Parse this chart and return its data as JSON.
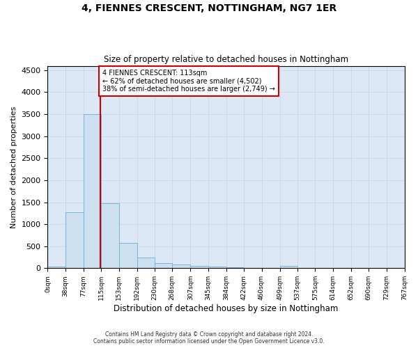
{
  "title": "4, FIENNES CRESCENT, NOTTINGHAM, NG7 1ER",
  "subtitle": "Size of property relative to detached houses in Nottingham",
  "xlabel": "Distribution of detached houses by size in Nottingham",
  "ylabel": "Number of detached properties",
  "property_label": "4 FIENNES CRESCENT: 113sqm",
  "annotation_line1": "← 62% of detached houses are smaller (4,502)",
  "annotation_line2": "38% of semi-detached houses are larger (2,749) →",
  "footer_line1": "Contains HM Land Registry data © Crown copyright and database right 2024.",
  "footer_line2": "Contains public sector information licensed under the Open Government Licence v3.0.",
  "bar_edges": [
    0,
    38,
    77,
    115,
    153,
    192,
    230,
    268,
    307,
    345,
    384,
    422,
    460,
    499,
    537,
    575,
    614,
    652,
    690,
    729,
    767
  ],
  "bar_heights": [
    40,
    1270,
    3500,
    1480,
    580,
    240,
    115,
    85,
    55,
    30,
    15,
    10,
    5,
    50,
    5,
    0,
    0,
    0,
    0,
    0
  ],
  "bar_color": "#cce0f0",
  "bar_edge_color": "#6aafd6",
  "vline_color": "#cc0000",
  "vline_x": 113,
  "annotation_box_color": "#cc0000",
  "grid_color": "#d0d8e8",
  "background_color": "#dce8f5",
  "ylim": [
    0,
    4600
  ],
  "yticks": [
    0,
    500,
    1000,
    1500,
    2000,
    2500,
    3000,
    3500,
    4000,
    4500
  ]
}
